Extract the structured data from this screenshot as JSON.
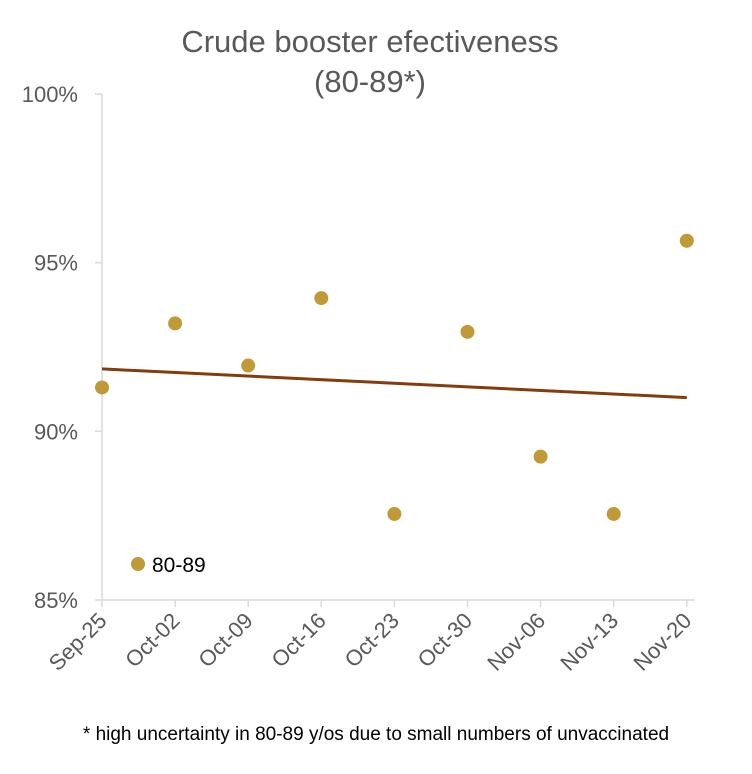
{
  "chart_data": {
    "type": "scatter",
    "title": "Crude booster efectiveness",
    "subtitle": "(80-89*)",
    "categories": [
      "Sep-25",
      "Oct-02",
      "Oct-09",
      "Oct-16",
      "Oct-23",
      "Oct-30",
      "Nov-06",
      "Nov-13",
      "Nov-20"
    ],
    "series": [
      {
        "name": "80-89",
        "values": [
          91.3,
          93.2,
          91.95,
          93.95,
          87.55,
          92.95,
          89.25,
          87.55,
          95.65
        ],
        "color": "#BF9A37"
      }
    ],
    "trendline": {
      "type": "linear",
      "start": 91.85,
      "end": 91.0,
      "color": "#843C0C"
    },
    "yticks": [
      "100%",
      "95%",
      "90%",
      "85%"
    ],
    "ylim": [
      85,
      100
    ],
    "xlabel": "",
    "ylabel": "",
    "legend_position": "bottom-left",
    "axis_color": "#D9D9D9",
    "tick_label_color": "#595959"
  },
  "footnote": "* high uncertainty in 80-89 y/os due to small numbers of unvaccinated"
}
